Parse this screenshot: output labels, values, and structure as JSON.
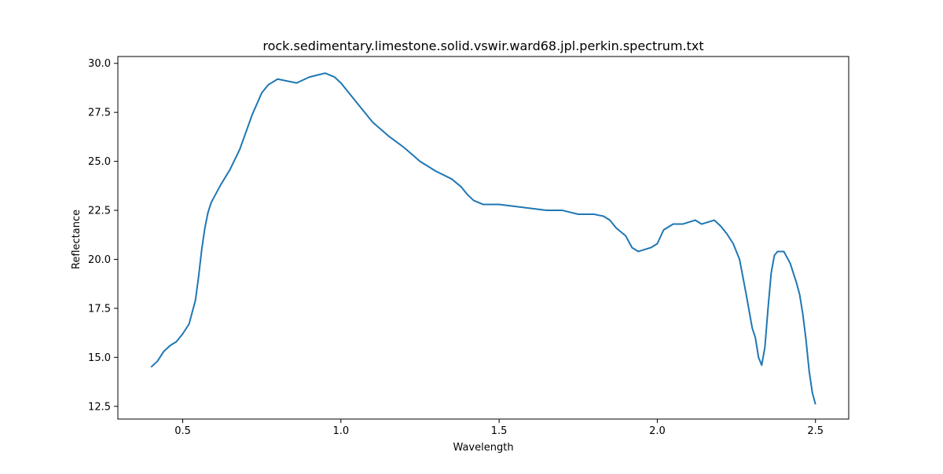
{
  "chart_data": {
    "type": "line",
    "title": "rock.sedimentary.limestone.solid.vswir.ward68.jpl.perkin.spectrum.txt",
    "xlabel": "Wavelength",
    "ylabel": "Reflectance",
    "xlim": [
      0.295,
      2.605
    ],
    "ylim": [
      11.85,
      30.35
    ],
    "xticks": [
      0.5,
      1.0,
      1.5,
      2.0,
      2.5
    ],
    "xtick_labels": [
      "0.5",
      "1.0",
      "1.5",
      "2.0",
      "2.5"
    ],
    "yticks": [
      12.5,
      15.0,
      17.5,
      20.0,
      22.5,
      25.0,
      27.5,
      30.0
    ],
    "ytick_labels": [
      "12.5",
      "15.0",
      "17.5",
      "20.0",
      "22.5",
      "25.0",
      "27.5",
      "30.0"
    ],
    "grid": false,
    "series": [
      {
        "color": "#1f77b4",
        "x": [
          0.4,
          0.42,
          0.44,
          0.46,
          0.48,
          0.5,
          0.52,
          0.54,
          0.55,
          0.56,
          0.57,
          0.58,
          0.59,
          0.6,
          0.62,
          0.65,
          0.68,
          0.7,
          0.72,
          0.75,
          0.77,
          0.8,
          0.83,
          0.86,
          0.9,
          0.95,
          0.98,
          1.0,
          1.02,
          1.05,
          1.08,
          1.1,
          1.15,
          1.2,
          1.25,
          1.3,
          1.35,
          1.38,
          1.4,
          1.42,
          1.45,
          1.5,
          1.55,
          1.6,
          1.65,
          1.7,
          1.75,
          1.8,
          1.83,
          1.85,
          1.87,
          1.9,
          1.92,
          1.94,
          1.96,
          1.98,
          2.0,
          2.02,
          2.05,
          2.08,
          2.12,
          2.14,
          2.16,
          2.18,
          2.2,
          2.22,
          2.24,
          2.26,
          2.28,
          2.3,
          2.31,
          2.32,
          2.33,
          2.34,
          2.35,
          2.36,
          2.37,
          2.38,
          2.4,
          2.42,
          2.44,
          2.45,
          2.46,
          2.47,
          2.48,
          2.49,
          2.5
        ],
        "y": [
          14.5,
          14.8,
          15.3,
          15.6,
          15.8,
          16.2,
          16.7,
          17.9,
          19.1,
          20.5,
          21.6,
          22.4,
          22.9,
          23.2,
          23.8,
          24.6,
          25.6,
          26.5,
          27.4,
          28.5,
          28.9,
          29.2,
          29.1,
          29.0,
          29.3,
          29.5,
          29.3,
          29.0,
          28.6,
          28.0,
          27.4,
          27.0,
          26.3,
          25.7,
          25.0,
          24.5,
          24.1,
          23.7,
          23.3,
          23.0,
          22.8,
          22.8,
          22.7,
          22.6,
          22.5,
          22.5,
          22.3,
          22.3,
          22.2,
          22.0,
          21.6,
          21.2,
          20.6,
          20.4,
          20.5,
          20.6,
          20.8,
          21.5,
          21.8,
          21.8,
          22.0,
          21.8,
          21.9,
          22.0,
          21.7,
          21.3,
          20.8,
          20.0,
          18.3,
          16.5,
          16.0,
          15.0,
          14.6,
          15.5,
          17.5,
          19.3,
          20.2,
          20.4,
          20.4,
          19.8,
          18.8,
          18.2,
          17.2,
          15.9,
          14.3,
          13.2,
          12.6
        ]
      }
    ]
  }
}
